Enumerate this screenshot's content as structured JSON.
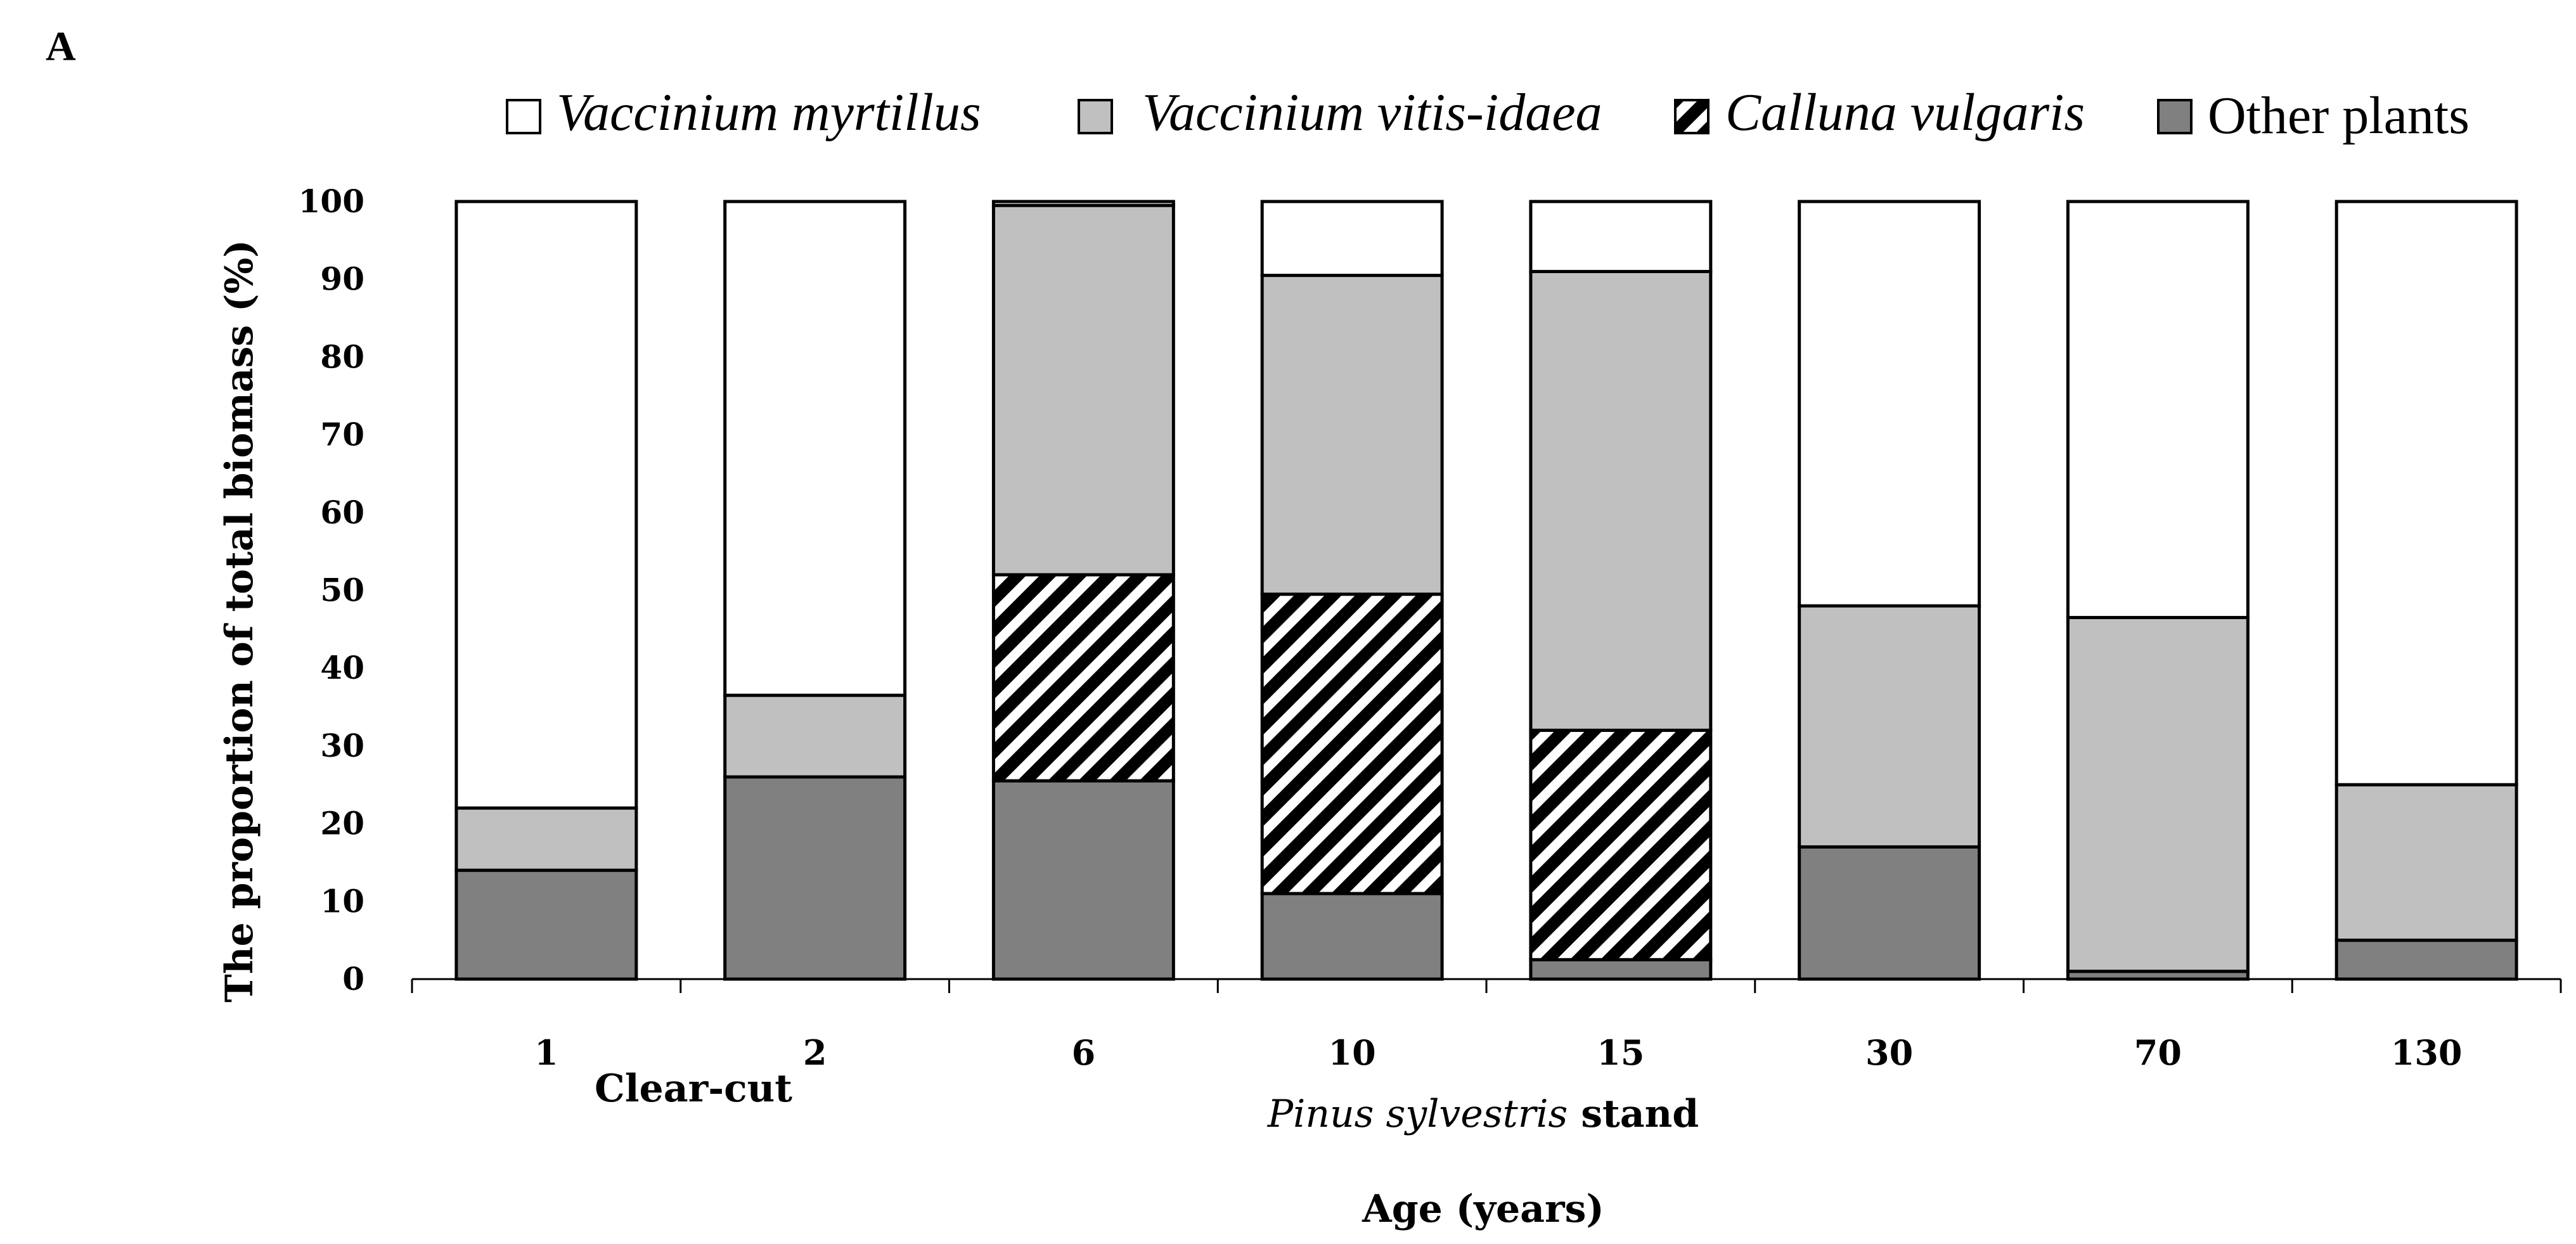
{
  "panel_label": "A",
  "colors": {
    "vaccinium_myrtillus": "#ffffff",
    "vaccinium_vitis_idaea": "#c0c0c0",
    "calluna_vulgaris": "hatch-black-white",
    "other_plants": "#808080"
  },
  "legend": [
    {
      "label": "Vaccinium myrtillus",
      "italic": true,
      "swatch": "white"
    },
    {
      "label": "Vaccinium vitis-idaea",
      "italic": true,
      "swatch": "light-gray"
    },
    {
      "label": "Calluna vulgaris",
      "italic": true,
      "swatch": "hatch"
    },
    {
      "label": "Other plants",
      "italic": false,
      "swatch": "dark-gray"
    }
  ],
  "groups": {
    "clear_cut": "Clear-cut",
    "stand_italic": "Pinus sylvestris",
    "stand_rest": " stand"
  },
  "chart_data": {
    "type": "bar",
    "stacked": true,
    "title": "",
    "xlabel": "Age (years)",
    "ylabel": "The proportion of total biomass (%)",
    "ylim": [
      0,
      100
    ],
    "yticks": [
      0,
      10,
      20,
      30,
      40,
      50,
      60,
      70,
      80,
      90,
      100
    ],
    "grid": false,
    "legend_position": "top",
    "categories": [
      "1",
      "2",
      "6",
      "10",
      "15",
      "30",
      "70",
      "130"
    ],
    "series": [
      {
        "name": "Other plants",
        "values": [
          14,
          26,
          25.5,
          11,
          2.5,
          17,
          1,
          5
        ]
      },
      {
        "name": "Calluna vulgaris",
        "values": [
          0,
          0,
          26.5,
          38.5,
          29.5,
          0,
          0,
          0
        ]
      },
      {
        "name": "Vaccinium vitis-idaea",
        "values": [
          8,
          10.5,
          47.5,
          41,
          59,
          31,
          45.5,
          20
        ]
      },
      {
        "name": "Vaccinium myrtillus",
        "values": [
          78,
          63.5,
          0.5,
          9.5,
          9,
          52,
          53.5,
          75
        ]
      }
    ]
  }
}
